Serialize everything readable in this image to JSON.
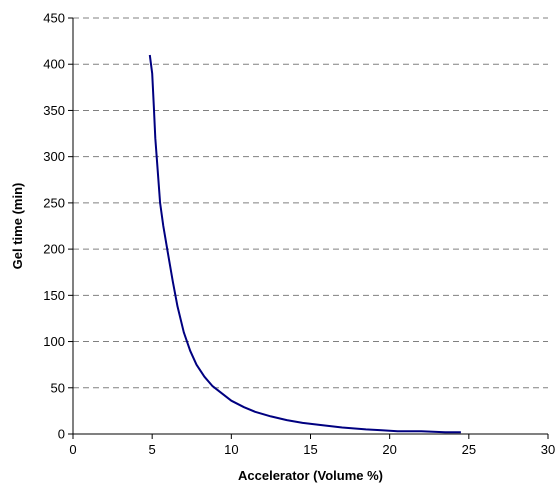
{
  "chart_data": {
    "type": "line",
    "title": "",
    "xlabel": "Accelerator  (Volume %)",
    "ylabel": "Gel time  (min)",
    "xlim": [
      0,
      30
    ],
    "ylim": [
      0,
      450
    ],
    "x_ticks": [
      "0",
      "5",
      "10",
      "15",
      "20",
      "25",
      "30"
    ],
    "y_ticks": [
      "0",
      "50",
      "100",
      "150",
      "200",
      "250",
      "300",
      "350",
      "400",
      "450"
    ],
    "grid": "horizontal dashed",
    "legend": "none",
    "series": [
      {
        "color": "#000080",
        "x": [
          4.85,
          5.0,
          5.1,
          5.2,
          5.35,
          5.5,
          5.7,
          6.0,
          6.3,
          6.6,
          7.0,
          7.4,
          7.8,
          8.3,
          8.8,
          9.4,
          10.0,
          10.8,
          11.5,
          12.5,
          13.5,
          14.5,
          15.5,
          17.0,
          18.5,
          19.5,
          20.5,
          22.0,
          23.5,
          24.5
        ],
        "y": [
          410,
          390,
          355,
          320,
          285,
          250,
          225,
          195,
          165,
          138,
          110,
          90,
          75,
          62,
          52,
          44,
          36,
          29,
          24,
          19,
          15,
          12,
          10,
          7,
          5,
          4,
          3,
          3,
          2,
          2
        ]
      }
    ]
  }
}
